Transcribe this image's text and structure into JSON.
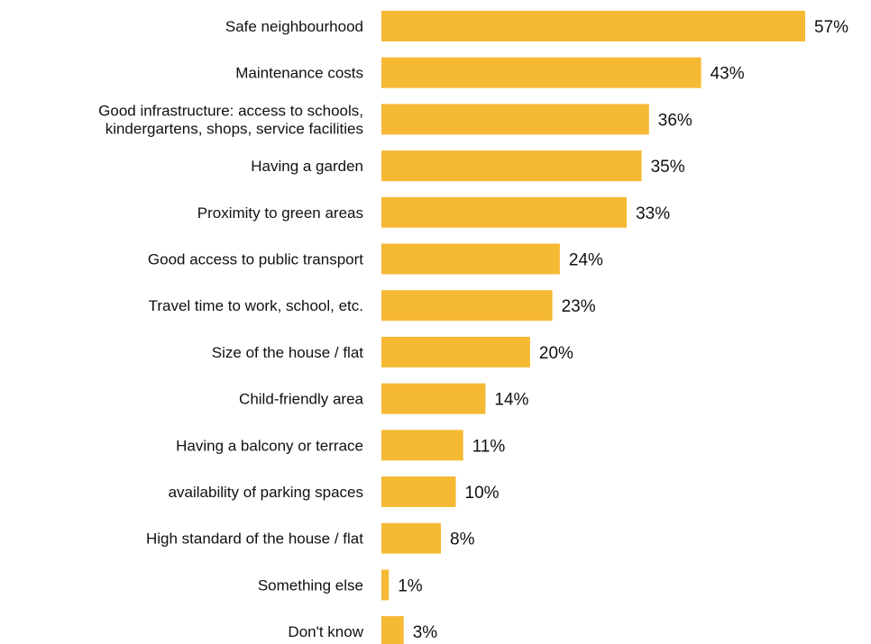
{
  "chart_data": {
    "type": "bar",
    "orientation": "horizontal",
    "categories": [
      [
        "Safe neighbourhood"
      ],
      [
        "Maintenance costs"
      ],
      [
        "Good infrastructure: access to schools,",
        "kindergartens, shops, service facilities"
      ],
      [
        "Having a garden"
      ],
      [
        "Proximity to green areas"
      ],
      [
        "Good access to public transport"
      ],
      [
        "Travel time to work, school, etc."
      ],
      [
        "Size of the house / flat"
      ],
      [
        "Child-friendly area"
      ],
      [
        "Having a balcony or terrace"
      ],
      [
        "availability of parking spaces"
      ],
      [
        "High standard of the house / flat"
      ],
      [
        "Something else"
      ],
      [
        "Don't know"
      ]
    ],
    "values": [
      57,
      43,
      36,
      35,
      33,
      24,
      23,
      20,
      14,
      11,
      10,
      8,
      1,
      3
    ],
    "value_labels": [
      "57%",
      "43%",
      "36%",
      "35%",
      "33%",
      "24%",
      "23%",
      "20%",
      "14%",
      "11%",
      "10%",
      "8%",
      "1%",
      "3%"
    ],
    "unit": "%",
    "title": "",
    "xlabel": "",
    "ylabel": "",
    "xlim": [
      0,
      57
    ],
    "grid": false,
    "legend": "none",
    "bar_color": "#F6B934"
  }
}
